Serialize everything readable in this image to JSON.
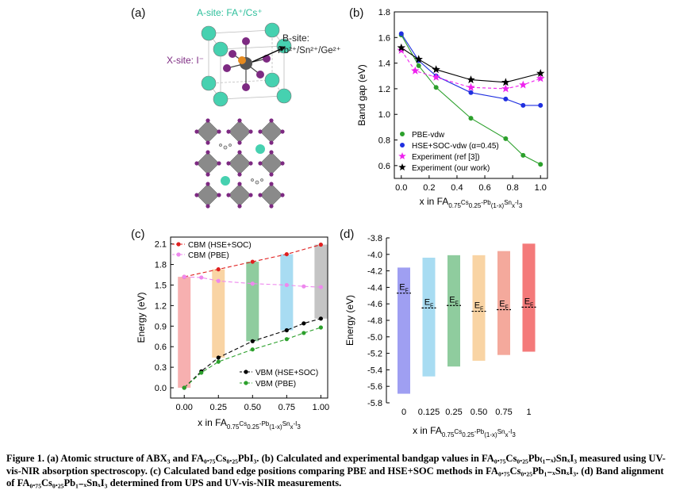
{
  "panels": {
    "a": "(a)",
    "b": "(b)",
    "c": "(c)",
    "d": "(d)"
  },
  "panel_a": {
    "a_site": "A-site: FA⁺/Cs⁺",
    "b_site_line1": "B-site:",
    "b_site_line2": "Pb²⁺/Sn²⁺/Ge²⁺",
    "x_site": "X-site: I⁻"
  },
  "colors": {
    "pbe_green": "#2ca02c",
    "hse_blue": "#1f2fe0",
    "ref_magenta": "#ee22ee",
    "ours_black": "#000000",
    "cbm_red": "#e02020",
    "cbm_pbe_pink": "#ee88ee",
    "vbm_black": "#000000",
    "vbm_green": "#2ca02c"
  },
  "caption": "Figure 1. (a) Atomic structure of ABX₃ and FA₀.₇₅Cs₀.₂₅PbI₃. (b) Calculated and experimental bandgap values in FA₀.₇₅Cs₀.₂₅Pb₍₁₋ₓ₎SnₓI₃ measured using UV-vis-NIR absorption spectroscopy. (c) Calculated band edge positions comparing PBE and HSE+SOC methods in FA₀.₇₅Cs₀.₂₅Pb₁₋ₓSnₓI₃. (d) Band alignment of FA₀.₇₅Cs₀.₂₅Pb₁₋ₓSnₓI₃ determined from UPS and UV-vis-NIR measurements.",
  "chart_data": [
    {
      "id": "b",
      "type": "line",
      "xlabel": "x in FA0.75Cs0.25-Pb(1-x)Snx-I3",
      "ylabel": "Band gap (eV)",
      "xlim": [
        -0.05,
        1.05
      ],
      "ylim": [
        0.5,
        1.8
      ],
      "xticks": [
        "0.0",
        "0.2",
        "0.4",
        "0.6",
        "0.8",
        "1.0"
      ],
      "yticks": [
        "0.6",
        "0.8",
        "1.0",
        "1.2",
        "1.4",
        "1.6",
        "1.8"
      ],
      "legend_position": "bottom-left",
      "series": [
        {
          "name": "PBE-vdw",
          "marker": "circle",
          "color": "#2ca02c",
          "x": [
            0,
            0.125,
            0.25,
            0.5,
            0.75,
            0.875,
            1.0
          ],
          "y": [
            1.62,
            1.38,
            1.21,
            0.97,
            0.81,
            0.68,
            0.61
          ]
        },
        {
          "name": "HSE+SOC-vdw (α=0.45)",
          "marker": "circle",
          "color": "#1f2fe0",
          "x": [
            0,
            0.125,
            0.25,
            0.5,
            0.75,
            0.875,
            1.0
          ],
          "y": [
            1.63,
            1.42,
            1.3,
            1.17,
            1.12,
            1.07,
            1.07
          ]
        },
        {
          "name": "Experiment (ref [3])",
          "marker": "star",
          "color": "#ee22ee",
          "dashed": true,
          "x": [
            0,
            0.1,
            0.25,
            0.5,
            0.75,
            0.875,
            1.0
          ],
          "y": [
            1.5,
            1.34,
            1.29,
            1.21,
            1.2,
            1.23,
            1.28
          ]
        },
        {
          "name": "Experiment (our work)",
          "marker": "star",
          "color": "#000000",
          "x": [
            0,
            0.125,
            0.25,
            0.5,
            0.75,
            1.0
          ],
          "y": [
            1.52,
            1.43,
            1.35,
            1.27,
            1.25,
            1.32
          ]
        }
      ]
    },
    {
      "id": "c",
      "type": "line",
      "xlabel": "x in FA0.75Cs0.25-Pb(1-x)Snx-I3",
      "ylabel": "Energy (eV)",
      "xlim": [
        -0.1,
        1.05
      ],
      "ylim": [
        -0.15,
        2.2
      ],
      "xticks": [
        "0.00",
        "0.25",
        "0.50",
        "0.75",
        "1.00"
      ],
      "yticks": [
        "0.0",
        "0.3",
        "0.6",
        "0.9",
        "1.2",
        "1.5",
        "1.8",
        "2.1"
      ],
      "bars": {
        "x": [
          0,
          0.25,
          0.5,
          0.75,
          1.0
        ],
        "bottom": [
          0.0,
          0.44,
          0.68,
          0.84,
          1.01
        ],
        "top": [
          1.62,
          1.73,
          1.84,
          1.95,
          2.09
        ],
        "colors": [
          "#f7b0b0",
          "#f9d4a4",
          "#8fcc9e",
          "#a8dcf2",
          "#c4c4c4"
        ]
      },
      "series": [
        {
          "name": "CBM (HSE+SOC)",
          "color": "#e02020",
          "legend": "top",
          "x": [
            0,
            0.25,
            0.5,
            0.75,
            1.0
          ],
          "y": [
            1.62,
            1.73,
            1.84,
            1.95,
            2.09
          ]
        },
        {
          "name": "CBM (PBE)",
          "color": "#ee88ee",
          "legend": "top",
          "x": [
            0,
            0.125,
            0.25,
            0.5,
            0.75,
            0.875,
            1.0
          ],
          "y": [
            1.62,
            1.61,
            1.56,
            1.52,
            1.5,
            1.48,
            1.47
          ]
        },
        {
          "name": "VBM (HSE+SOC)",
          "color": "#000000",
          "legend": "bottom",
          "x": [
            0,
            0.125,
            0.25,
            0.5,
            0.75,
            0.875,
            1.0
          ],
          "y": [
            0.0,
            0.24,
            0.44,
            0.68,
            0.84,
            0.94,
            1.01
          ]
        },
        {
          "name": "VBM (PBE)",
          "color": "#2ca02c",
          "legend": "bottom",
          "x": [
            0,
            0.125,
            0.25,
            0.5,
            0.75,
            0.875,
            1.0
          ],
          "y": [
            0.0,
            0.22,
            0.38,
            0.56,
            0.71,
            0.8,
            0.88
          ]
        }
      ]
    },
    {
      "id": "d",
      "type": "bar",
      "xlabel": "x in FA0.75Cs0.25-Pb(1-x)Snx-I3",
      "ylabel": "Energy (eV)",
      "ylim": [
        -5.8,
        -3.8
      ],
      "yticks": [
        "-3.8",
        "-4.0",
        "-4.2",
        "-4.4",
        "-4.6",
        "-4.8",
        "-5.0",
        "-5.2",
        "-5.4",
        "-5.6",
        "-5.8"
      ],
      "categories": [
        "0",
        "0.125",
        "0.25",
        "0.50",
        "0.75",
        "1"
      ],
      "cbm": [
        -4.16,
        -4.04,
        -4.01,
        -4.01,
        -3.96,
        -3.87
      ],
      "vbm": [
        -5.69,
        -5.48,
        -5.36,
        -5.29,
        -5.22,
        -5.18
      ],
      "fermi": [
        -4.47,
        -4.65,
        -4.62,
        -4.69,
        -4.67,
        -4.64
      ],
      "fermi_label": "EF",
      "colors": [
        "#9f9ff2",
        "#a8dcf2",
        "#8fcc9e",
        "#f9d4a4",
        "#f4a99c",
        "#f47a7a"
      ]
    }
  ]
}
